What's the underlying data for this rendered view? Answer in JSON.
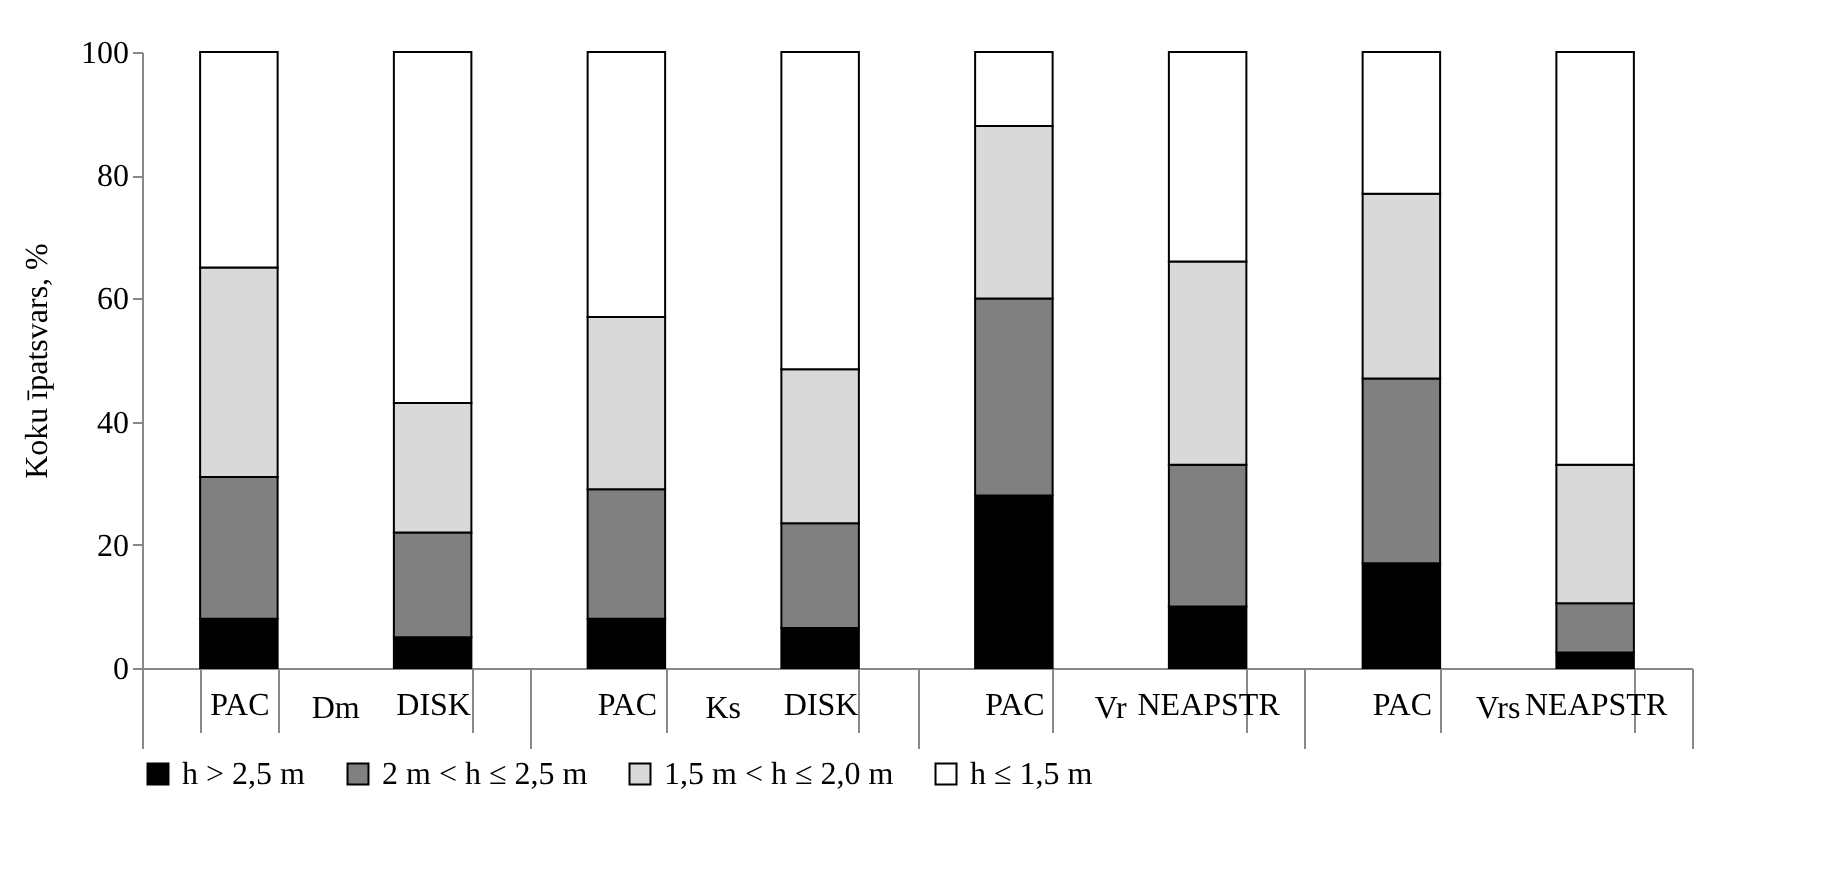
{
  "chart_data": {
    "type": "bar",
    "stacked": true,
    "ylabel": "Koku īpatsvars, %",
    "categories": [
      "PAC",
      "DISK",
      "PAC",
      "DISK",
      "PAC",
      "NEAPSTR",
      "PAC",
      "NEAPSTR"
    ],
    "annotations": [
      "Dm",
      "Ks",
      "Vr",
      "Vrs"
    ],
    "series": [
      {
        "name": "h > 2,5 m",
        "color": "#000000",
        "values": [
          8,
          5,
          8,
          6.5,
          28,
          10,
          17,
          2.5
        ]
      },
      {
        "name": "2 m < h ≤ 2,5 m",
        "color": "#808080",
        "values": [
          23,
          17,
          21,
          17,
          32,
          23,
          30,
          8
        ]
      },
      {
        "name": "1,5 m < h ≤ 2,0 m",
        "color": "#d9d9d9",
        "values": [
          34,
          21,
          28,
          25,
          28,
          33,
          30,
          22.5
        ]
      },
      {
        "name": "h ≤ 1,5 m",
        "color": "#ffffff",
        "values": [
          35,
          57,
          43,
          51.5,
          12,
          34,
          23,
          67
        ]
      }
    ],
    "ylim": [
      0,
      100
    ],
    "yticks": [
      0,
      20,
      40,
      60,
      80,
      100
    ],
    "grid": false,
    "legend": "bottom"
  }
}
